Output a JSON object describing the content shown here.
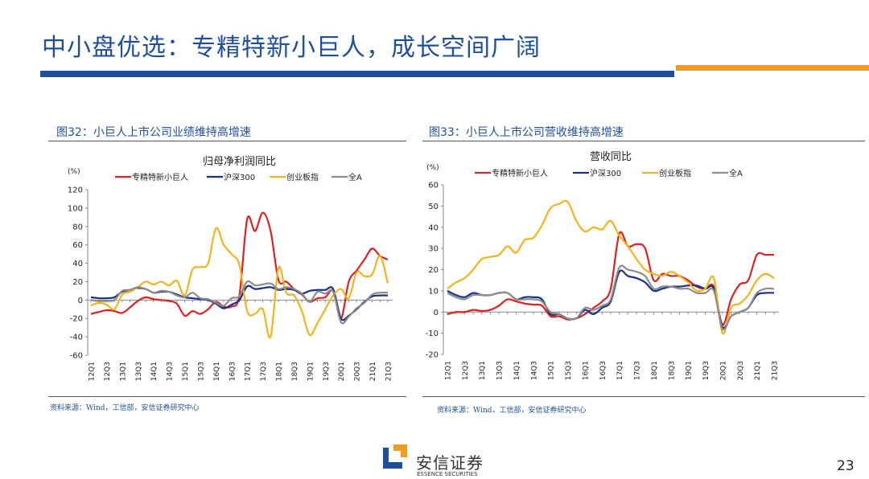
{
  "header": {
    "title": "中小盘优选：专精特新小巨人，成长空间广阔"
  },
  "colors": {
    "accent_blue": "#1f4e9b",
    "accent_orange": "#f39c1e"
  },
  "figures": [
    {
      "caption": "图32：小巨人上市公司业绩维持高增速",
      "source": "资料来源：Wind，工信部，安信证券研究中心"
    },
    {
      "caption": "图33：小巨人上市公司营收维持高增速",
      "source": "资料来源：Wind，工信部，安信证券研究中心"
    }
  ],
  "footer": {
    "logo_cn": "安信证券",
    "logo_en": "ESSENCE SECURITIES",
    "page_number": "23"
  },
  "chart_data": [
    {
      "type": "line",
      "title": "归母净利润同比",
      "ylabel": "(%)",
      "ylim": [
        -60,
        120
      ],
      "yticks": [
        120,
        100,
        80,
        60,
        40,
        20,
        0,
        -20,
        -40,
        -60
      ],
      "xticks": [
        "12Q1",
        "12Q3",
        "13Q1",
        "13Q3",
        "14Q1",
        "14Q3",
        "15Q1",
        "15Q3",
        "16Q1",
        "16Q3",
        "17Q1",
        "17Q3",
        "18Q1",
        "18Q3",
        "19Q1",
        "19Q3",
        "20Q1",
        "20Q3",
        "21Q1",
        "21Q3"
      ],
      "x": [
        "12Q1",
        "12Q2",
        "12Q3",
        "12Q4",
        "13Q1",
        "13Q2",
        "13Q3",
        "13Q4",
        "14Q1",
        "14Q2",
        "14Q3",
        "14Q4",
        "15Q1",
        "15Q2",
        "15Q3",
        "15Q4",
        "16Q1",
        "16Q2",
        "16Q3",
        "16Q4",
        "17Q1",
        "17Q2",
        "17Q3",
        "17Q4",
        "18Q1",
        "18Q2",
        "18Q3",
        "18Q4",
        "19Q1",
        "19Q2",
        "19Q3",
        "19Q4",
        "20Q1",
        "20Q2",
        "20Q3",
        "20Q4",
        "21Q1",
        "21Q2",
        "21Q3"
      ],
      "legend": "top",
      "grid": false,
      "series": [
        {
          "name": "专精特新小巨人",
          "color": "#e02020",
          "values": [
            -15,
            -13,
            -11,
            -12,
            -14,
            -8,
            -1,
            3,
            1,
            0,
            -1,
            -4,
            -17,
            -12,
            -15,
            -10,
            -2,
            -7,
            -7,
            5,
            88,
            75,
            95,
            75,
            22,
            20,
            12,
            6,
            -2,
            2,
            3,
            10,
            -20,
            20,
            32,
            44,
            56,
            48,
            44
          ]
        },
        {
          "name": "沪深300",
          "color": "#1a2f8a",
          "values": [
            3,
            2,
            2,
            3,
            9,
            11,
            13,
            12,
            8,
            9,
            9,
            6,
            3,
            2,
            1,
            0,
            -4,
            -9,
            -5,
            0,
            15,
            12,
            13,
            14,
            11,
            12,
            11,
            7,
            10,
            11,
            11,
            12,
            -20,
            -17,
            -10,
            -2,
            4,
            5,
            5
          ]
        },
        {
          "name": "创业板指",
          "color": "#f5b21b",
          "values": [
            -6,
            -3,
            -5,
            -10,
            6,
            9,
            14,
            20,
            17,
            20,
            16,
            21,
            5,
            33,
            36,
            40,
            78,
            60,
            50,
            38,
            -12,
            -15,
            -10,
            -40,
            35,
            8,
            5,
            -12,
            -38,
            -25,
            -10,
            5,
            12,
            2,
            30,
            26,
            28,
            48,
            18
          ]
        },
        {
          "name": "全A",
          "color": "#8c8c8c",
          "values": [
            0,
            -1,
            -1,
            0,
            10,
            11,
            14,
            12,
            8,
            10,
            9,
            5,
            3,
            8,
            2,
            1,
            -3,
            -6,
            2,
            4,
            20,
            16,
            17,
            18,
            12,
            14,
            12,
            7,
            -2,
            9,
            7,
            9,
            -24,
            -18,
            -9,
            -3,
            6,
            8,
            8
          ]
        }
      ]
    },
    {
      "type": "line",
      "title": "营收同比",
      "ylabel": "(%)",
      "ylim": [
        -20,
        60
      ],
      "yticks": [
        60,
        50,
        40,
        30,
        20,
        10,
        0,
        -10,
        -20
      ],
      "xticks": [
        "12Q1",
        "12Q3",
        "13Q1",
        "13Q3",
        "14Q1",
        "14Q3",
        "15Q1",
        "15Q3",
        "16Q1",
        "16Q3",
        "17Q1",
        "17Q3",
        "18Q1",
        "18Q3",
        "19Q1",
        "19Q3",
        "20Q1",
        "20Q3",
        "21Q1",
        "21Q3"
      ],
      "x": [
        "12Q1",
        "12Q2",
        "12Q3",
        "12Q4",
        "13Q1",
        "13Q2",
        "13Q3",
        "13Q4",
        "14Q1",
        "14Q2",
        "14Q3",
        "14Q4",
        "15Q1",
        "15Q2",
        "15Q3",
        "15Q4",
        "16Q1",
        "16Q2",
        "16Q3",
        "16Q4",
        "17Q1",
        "17Q2",
        "17Q3",
        "17Q4",
        "18Q1",
        "18Q2",
        "18Q3",
        "18Q4",
        "19Q1",
        "19Q2",
        "19Q3",
        "19Q4",
        "20Q1",
        "20Q2",
        "20Q3",
        "20Q4",
        "21Q1",
        "21Q2",
        "21Q3"
      ],
      "legend": "top",
      "grid": false,
      "series": [
        {
          "name": "专精特新小巨人",
          "color": "#e02020",
          "values": [
            -1,
            0,
            0,
            1,
            0.5,
            1,
            3,
            6,
            5,
            4,
            3.5,
            3,
            -2,
            -2,
            -3.5,
            -3,
            -1,
            2,
            5,
            11,
            37,
            31,
            32,
            30,
            15,
            18,
            17,
            17,
            15,
            12,
            11,
            12,
            -6,
            6,
            13,
            15,
            27,
            27,
            27
          ]
        },
        {
          "name": "沪深300",
          "color": "#1a2f8a",
          "values": [
            10,
            8,
            7,
            9,
            8,
            8,
            9,
            9,
            6,
            7,
            7,
            6,
            -1,
            -1,
            -3,
            -3,
            1,
            -1,
            2,
            5,
            19,
            17,
            16,
            14,
            10,
            11,
            12,
            12,
            12.5,
            12.5,
            11,
            11,
            -7,
            -2,
            0,
            2,
            8,
            9,
            9
          ]
        },
        {
          "name": "创业板指",
          "color": "#f5b21b",
          "values": [
            11,
            14,
            16,
            20,
            25,
            26,
            27,
            31,
            28,
            34,
            35,
            41,
            49,
            51,
            52,
            43,
            38,
            40,
            39,
            43,
            36,
            31,
            25,
            20,
            18,
            17,
            19,
            17,
            14,
            10,
            11,
            16,
            -10,
            2,
            4,
            8,
            15,
            18,
            16
          ]
        },
        {
          "name": "全A",
          "color": "#8c8c8c",
          "values": [
            9,
            7,
            6,
            8,
            8,
            8,
            9,
            9,
            6,
            6,
            6,
            5,
            0,
            -1,
            -3,
            -3,
            2,
            1,
            3,
            6,
            21,
            20,
            19,
            17,
            11,
            12,
            12,
            11,
            11,
            9,
            9,
            10,
            -8,
            -2,
            0,
            2,
            9,
            11,
            11
          ]
        }
      ]
    }
  ]
}
